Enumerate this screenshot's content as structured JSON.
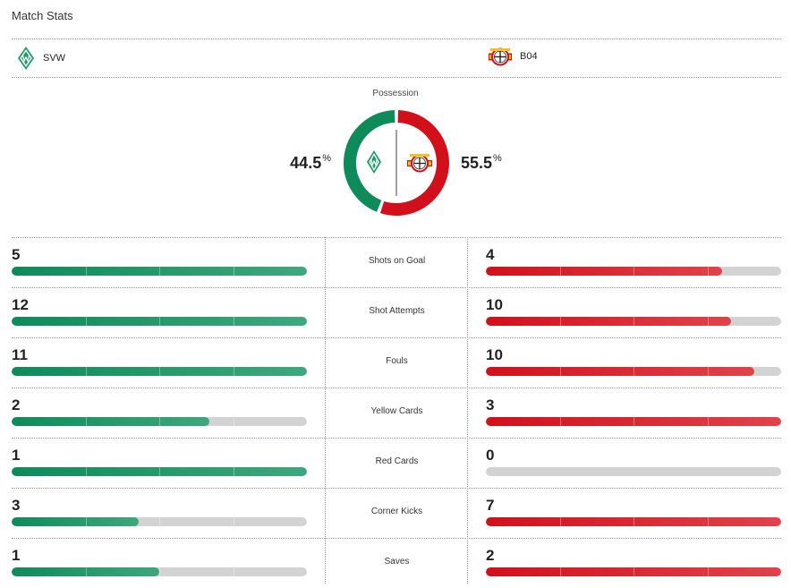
{
  "header": {
    "title": "Match Stats"
  },
  "teams": {
    "home": {
      "abbr": "SVW",
      "logo": "werder-bremen-crest-icon",
      "color": "#0f8a5b"
    },
    "away": {
      "abbr": "B04",
      "logo": "bayer-leverkusen-crest-icon",
      "color": "#d1101b"
    }
  },
  "possession": {
    "label": "Possession",
    "home": "44.5",
    "away": "55.5",
    "unit": "%",
    "home_fraction": 0.445,
    "away_fraction": 0.555
  },
  "stats": [
    {
      "label": "Shots on Goal",
      "home": "5",
      "away": "4",
      "home_fill": 1.0,
      "away_fill": 0.8
    },
    {
      "label": "Shot Attempts",
      "home": "12",
      "away": "10",
      "home_fill": 1.0,
      "away_fill": 0.83
    },
    {
      "label": "Fouls",
      "home": "11",
      "away": "10",
      "home_fill": 1.0,
      "away_fill": 0.91
    },
    {
      "label": "Yellow Cards",
      "home": "2",
      "away": "3",
      "home_fill": 0.67,
      "away_fill": 1.0
    },
    {
      "label": "Red Cards",
      "home": "1",
      "away": "0",
      "home_fill": 1.0,
      "away_fill": 0.0
    },
    {
      "label": "Corner Kicks",
      "home": "3",
      "away": "7",
      "home_fill": 0.43,
      "away_fill": 1.0
    },
    {
      "label": "Saves",
      "home": "1",
      "away": "2",
      "home_fill": 0.5,
      "away_fill": 1.0
    }
  ]
}
